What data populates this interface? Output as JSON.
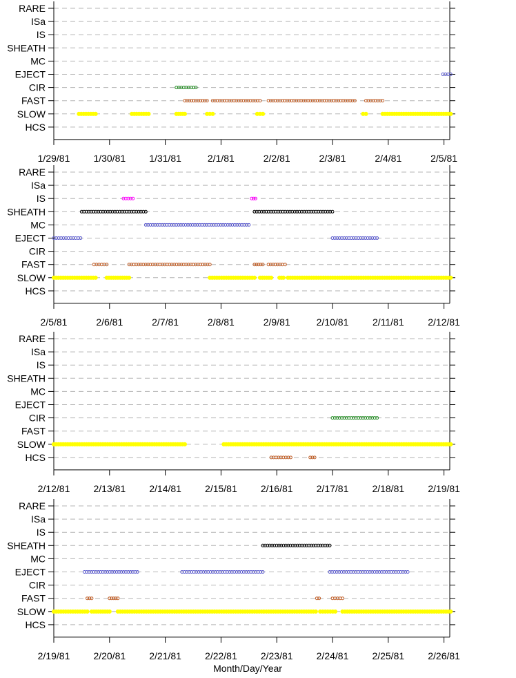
{
  "chart_data": [
    {
      "type": "scatter",
      "categories": [
        "RARE",
        "ISa",
        "IS",
        "SHEATH",
        "MC",
        "EJECT",
        "CIR",
        "FAST",
        "SLOW",
        "HCS"
      ],
      "x_ticks": [
        "1/29/81",
        "1/30/81",
        "1/31/81",
        "2/1/81",
        "2/2/81",
        "2/3/81",
        "2/4/81",
        "2/5/81"
      ],
      "series": [
        {
          "category": "EJECT",
          "color": "#5a5acd",
          "ranges": [
            [
              6.98,
              7.12
            ]
          ]
        },
        {
          "category": "CIR",
          "color": "#228b22",
          "ranges": [
            [
              2.2,
              2.55
            ]
          ]
        },
        {
          "category": "FAST",
          "color": "#c0602a",
          "ranges": [
            [
              2.35,
              2.75
            ],
            [
              2.85,
              3.7
            ],
            [
              3.85,
              5.4
            ],
            [
              5.6,
              5.9
            ]
          ]
        },
        {
          "category": "SLOW",
          "color": "#ffff00",
          "ranges": [
            [
              0.45,
              0.75
            ],
            [
              1.4,
              1.7
            ],
            [
              2.2,
              2.35
            ],
            [
              2.75,
              2.85
            ],
            [
              3.65,
              3.75
            ],
            [
              5.55,
              5.6
            ],
            [
              5.9,
              7.12
            ]
          ]
        }
      ]
    },
    {
      "type": "scatter",
      "categories": [
        "RARE",
        "ISa",
        "IS",
        "SHEATH",
        "MC",
        "EJECT",
        "CIR",
        "FAST",
        "SLOW",
        "HCS"
      ],
      "x_ticks": [
        "2/5/81",
        "2/6/81",
        "2/7/81",
        "2/8/81",
        "2/9/81",
        "2/10/81",
        "2/11/81",
        "2/12/81"
      ],
      "series": [
        {
          "category": "IS",
          "color": "#ff00ff",
          "ranges": [
            [
              1.25,
              1.42
            ],
            [
              3.55,
              3.62
            ]
          ]
        },
        {
          "category": "SHEATH",
          "color": "#000000",
          "ranges": [
            [
              0.5,
              1.65
            ],
            [
              3.6,
              5.0
            ]
          ]
        },
        {
          "category": "MC",
          "color": "#5a5acd",
          "ranges": [
            [
              1.65,
              3.5
            ]
          ]
        },
        {
          "category": "EJECT",
          "color": "#5a5acd",
          "ranges": [
            [
              0.0,
              0.48
            ],
            [
              5.0,
              5.8
            ]
          ]
        },
        {
          "category": "FAST",
          "color": "#c0602a",
          "ranges": [
            [
              0.72,
              0.95
            ],
            [
              1.35,
              2.8
            ],
            [
              3.6,
              3.75
            ],
            [
              3.85,
              4.1
            ],
            [
              4.15,
              4.15
            ]
          ]
        },
        {
          "category": "SLOW",
          "color": "#ffff00",
          "ranges": [
            [
              0.0,
              0.75
            ],
            [
              0.95,
              1.35
            ],
            [
              2.8,
              3.6
            ],
            [
              3.7,
              3.9
            ],
            [
              4.05,
              4.12
            ],
            [
              4.2,
              7.12
            ]
          ]
        }
      ]
    },
    {
      "type": "scatter",
      "categories": [
        "RARE",
        "ISa",
        "IS",
        "SHEATH",
        "MC",
        "EJECT",
        "CIR",
        "FAST",
        "SLOW",
        "HCS"
      ],
      "x_ticks": [
        "2/12/81",
        "2/13/81",
        "2/14/81",
        "2/15/81",
        "2/16/81",
        "2/17/81",
        "2/18/81",
        "2/19/81"
      ],
      "series": [
        {
          "category": "CIR",
          "color": "#228b22",
          "ranges": [
            [
              5.0,
              5.8
            ]
          ]
        },
        {
          "category": "SLOW",
          "color": "#ffff00",
          "ranges": [
            [
              0.0,
              2.35
            ],
            [
              3.05,
              7.12
            ]
          ]
        },
        {
          "category": "HCS",
          "color": "#c0602a",
          "ranges": [
            [
              3.9,
              4.25
            ],
            [
              4.6,
              4.68
            ]
          ]
        }
      ]
    },
    {
      "type": "scatter",
      "categories": [
        "RARE",
        "ISa",
        "IS",
        "SHEATH",
        "MC",
        "EJECT",
        "CIR",
        "FAST",
        "SLOW",
        "HCS"
      ],
      "x_ticks": [
        "2/19/81",
        "2/20/81",
        "2/21/81",
        "2/22/81",
        "2/23/81",
        "2/24/81",
        "2/25/81",
        "2/26/81"
      ],
      "xlabel": "Month/Day/Year",
      "series": [
        {
          "category": "SHEATH",
          "color": "#000000",
          "ranges": [
            [
              3.75,
              4.95
            ]
          ]
        },
        {
          "category": "EJECT",
          "color": "#5a5acd",
          "ranges": [
            [
              0.55,
              1.5
            ],
            [
              2.3,
              3.75
            ],
            [
              4.95,
              6.35
            ]
          ]
        },
        {
          "category": "FAST",
          "color": "#c0602a",
          "ranges": [
            [
              0.6,
              0.68
            ],
            [
              1.0,
              1.15
            ],
            [
              4.72,
              4.76
            ],
            [
              5.0,
              5.18
            ]
          ]
        },
        {
          "category": "SLOW",
          "color": "#ffff00",
          "ranges": [
            [
              0.0,
              0.6
            ],
            [
              0.68,
              1.0
            ],
            [
              1.15,
              4.7
            ],
            [
              4.78,
              5.05
            ],
            [
              5.18,
              7.12
            ]
          ]
        }
      ]
    }
  ]
}
